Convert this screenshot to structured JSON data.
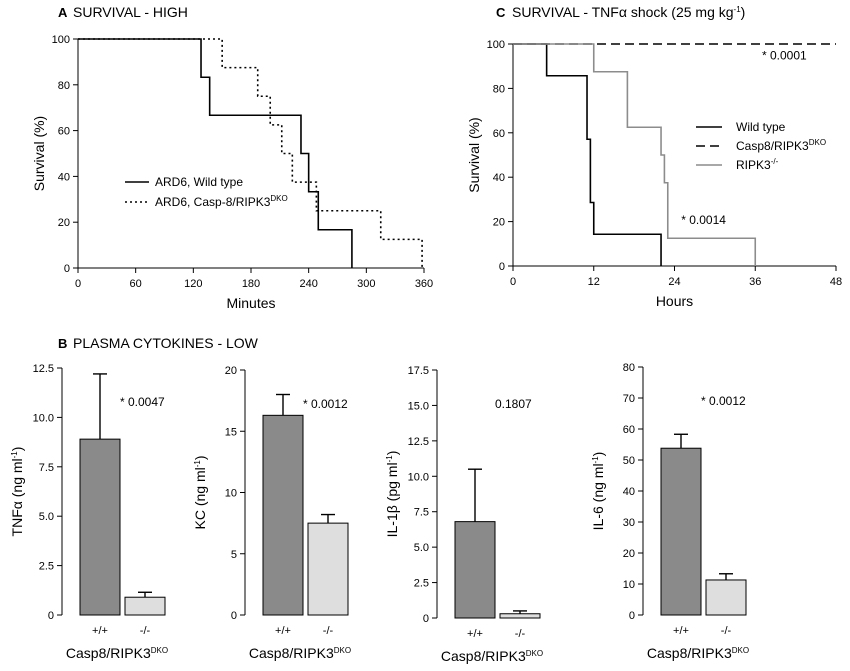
{
  "chart_data": [
    {
      "panel": "A",
      "type": "line",
      "title": "SURVIVAL - HIGH",
      "xlabel": "Minutes",
      "ylabel": "Survival (%)",
      "xlim": [
        0,
        360
      ],
      "ylim": [
        0,
        100
      ],
      "xticks": [
        0,
        60,
        120,
        180,
        240,
        300,
        360
      ],
      "yticks": [
        0,
        20,
        40,
        60,
        80,
        100
      ],
      "legend_position": "center-left",
      "series": [
        {
          "name": "ARD6, Wild type",
          "name_main": "ARD6, Wild type",
          "name_sup": "",
          "style": "solid",
          "color": "#000000",
          "x": [
            0,
            128,
            128,
            137,
            137,
            232,
            232,
            240,
            240,
            250,
            250,
            258,
            258,
            285,
            285
          ],
          "y": [
            100,
            100,
            83.3,
            83.3,
            66.7,
            66.7,
            50,
            50,
            33.3,
            33.3,
            16.7,
            16.7,
            16.7,
            16.7,
            0
          ]
        },
        {
          "name": "ARD6, Casp-8/RIPK3DKO",
          "name_main": "ARD6, Casp-8/RIPK3",
          "name_sup": "DKO",
          "style": "dotted",
          "color": "#000000",
          "x": [
            0,
            150,
            150,
            187,
            187,
            200,
            200,
            212,
            212,
            223,
            223,
            248,
            248,
            262,
            262,
            315,
            315,
            348,
            348,
            358,
            358
          ],
          "y": [
            100,
            100,
            87.5,
            87.5,
            75,
            75,
            62.5,
            62.5,
            50,
            50,
            37.5,
            37.5,
            25,
            25,
            25,
            25,
            12.5,
            12.5,
            12.5,
            12.5,
            0
          ]
        }
      ]
    },
    {
      "panel": "B",
      "group_title": "PLASMA CYTOKINES - LOW",
      "subplots": [
        {
          "type": "bar",
          "ylabel": "TNFα (ng ml-1)",
          "ylabel_main": "TNFα (ng ml",
          "ylabel_sup": "-1",
          "ylabel_end": ")",
          "ylim": [
            0,
            12.5
          ],
          "yticks": [
            "0",
            "2.5",
            "5.0",
            "7.5",
            "10.0",
            "12.5"
          ],
          "categories": [
            "+/+",
            "-/-"
          ],
          "values": [
            8.9,
            0.9
          ],
          "errors": [
            3.3,
            0.25
          ],
          "colors": [
            "#8a8a8a",
            "#dedede"
          ],
          "annotation": "* 0.0047",
          "xlabel_main": "Casp8/RIPK3",
          "xlabel_sup": "DKO"
        },
        {
          "type": "bar",
          "ylabel": "KC (ng ml-1)",
          "ylabel_main": "KC (ng ml",
          "ylabel_sup": "-1",
          "ylabel_end": ")",
          "ylim": [
            0,
            20
          ],
          "yticks": [
            "0",
            "5",
            "10",
            "15",
            "20"
          ],
          "categories": [
            "+/+",
            "-/-"
          ],
          "values": [
            16.3,
            7.5
          ],
          "errors": [
            1.7,
            0.7
          ],
          "colors": [
            "#8a8a8a",
            "#dedede"
          ],
          "annotation": "* 0.0012",
          "xlabel_main": "Casp8/RIPK3",
          "xlabel_sup": "DKO"
        },
        {
          "type": "bar",
          "ylabel": "IL-1β (pg ml-1)",
          "ylabel_main": "IL-1β (pg ml",
          "ylabel_sup": "-1",
          "ylabel_end": ")",
          "ylim": [
            0,
            17.5
          ],
          "yticks": [
            "0",
            "2.5",
            "5.0",
            "7.5",
            "10.0",
            "12.5",
            "15.0",
            "17.5"
          ],
          "categories": [
            "+/+",
            "-/-"
          ],
          "values": [
            6.8,
            0.3
          ],
          "errors": [
            3.7,
            0.2
          ],
          "colors": [
            "#8a8a8a",
            "#dedede"
          ],
          "annotation": "0.1807",
          "xlabel_main": "Casp8/RIPK3",
          "xlabel_sup": "DKO"
        },
        {
          "type": "bar",
          "ylabel": "IL-6 (ng ml-1)",
          "ylabel_main": "IL-6 (ng ml",
          "ylabel_sup": "-1",
          "ylabel_end": ")",
          "ylim": [
            0,
            80
          ],
          "yticks": [
            "0",
            "10",
            "20",
            "30",
            "40",
            "50",
            "60",
            "70",
            "80"
          ],
          "categories": [
            "+/+",
            "-/-"
          ],
          "values": [
            53.8,
            11.3
          ],
          "errors": [
            4.5,
            2.0
          ],
          "colors": [
            "#8a8a8a",
            "#dedede"
          ],
          "annotation": "* 0.0012",
          "xlabel_main": "Casp8/RIPK3",
          "xlabel_sup": "DKO"
        }
      ]
    },
    {
      "panel": "C",
      "type": "line",
      "title": "SURVIVAL - TNFα shock (25 mg kg-1)",
      "title_main": "SURVIVAL - TNFα shock (25 mg kg",
      "title_sup": "-1",
      "title_end": ")",
      "xlabel": "Hours",
      "ylabel": "Survival (%)",
      "xlim": [
        0,
        48
      ],
      "ylim": [
        0,
        100
      ],
      "xticks": [
        0,
        12,
        24,
        36,
        48
      ],
      "yticks": [
        0,
        20,
        40,
        60,
        80,
        100
      ],
      "legend_position": "right",
      "annotations": [
        {
          "text": "* 0.0001",
          "x": 37,
          "y": 93
        },
        {
          "text": "* 0.0014",
          "x": 25,
          "y": 19
        }
      ],
      "series": [
        {
          "name": "Wild type",
          "name_main": "Wild type",
          "name_sup": "",
          "style": "solid",
          "color": "#000000",
          "x": [
            0,
            5,
            5,
            11,
            11,
            11.5,
            11.5,
            12,
            12,
            22,
            22
          ],
          "y": [
            100,
            100,
            85.7,
            85.7,
            57.1,
            57.1,
            28.6,
            28.6,
            14.3,
            14.3,
            0
          ]
        },
        {
          "name": "Casp8/RIPK3DKO",
          "name_main": "Casp8/RIPK3",
          "name_sup": "DKO",
          "style": "dashed",
          "color": "#000000",
          "x": [
            0,
            48
          ],
          "y": [
            100,
            100
          ]
        },
        {
          "name": "RIPK3-/-",
          "name_main": "RIPK3",
          "name_sup": "-/-",
          "style": "solid",
          "color": "#8c8c8c",
          "x": [
            0,
            12,
            12,
            17,
            17,
            22,
            22,
            22.5,
            22.5,
            23,
            23,
            36,
            36
          ],
          "y": [
            100,
            100,
            87.5,
            87.5,
            62.5,
            62.5,
            50,
            50,
            37.5,
            37.5,
            12.5,
            12.5,
            0
          ]
        }
      ]
    }
  ]
}
